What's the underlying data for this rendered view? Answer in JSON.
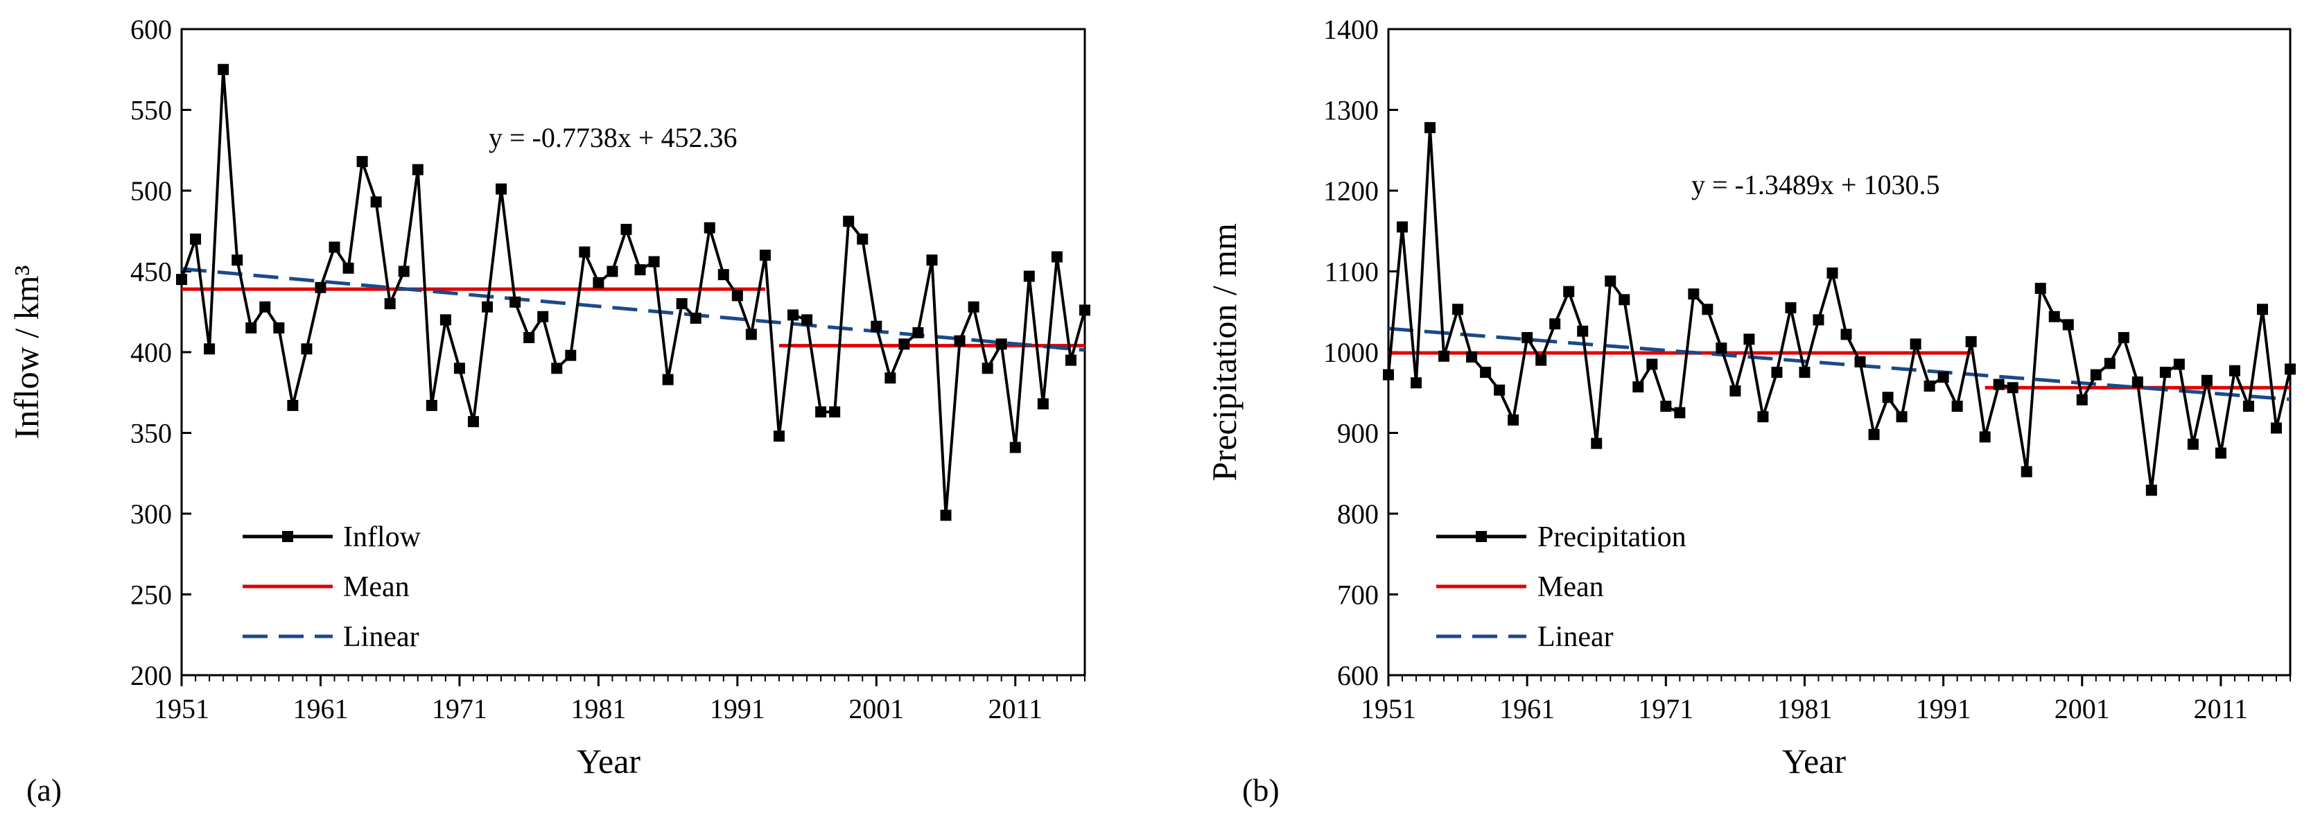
{
  "chart_data": [
    {
      "type": "line",
      "panel_label": "(a)",
      "xlabel": "Year",
      "ylabel": "Inflow / km³",
      "xlim": [
        1951,
        2016
      ],
      "ylim": [
        200,
        600
      ],
      "xticks": [
        1951,
        1961,
        1971,
        1981,
        1991,
        2001,
        2011
      ],
      "yticks": [
        200,
        250,
        300,
        350,
        400,
        450,
        500,
        550,
        600
      ],
      "equation": "y = -0.7738x  + 452.36",
      "x": [
        1951,
        1952,
        1953,
        1954,
        1955,
        1956,
        1957,
        1958,
        1959,
        1960,
        1961,
        1962,
        1963,
        1964,
        1965,
        1966,
        1967,
        1968,
        1969,
        1970,
        1971,
        1972,
        1973,
        1974,
        1975,
        1976,
        1977,
        1978,
        1979,
        1980,
        1981,
        1982,
        1983,
        1984,
        1985,
        1986,
        1987,
        1988,
        1989,
        1990,
        1991,
        1992,
        1993,
        1994,
        1995,
        1996,
        1997,
        1998,
        1999,
        2000,
        2001,
        2002,
        2003,
        2004,
        2005,
        2006,
        2007,
        2008,
        2009,
        2010,
        2011,
        2012,
        2013,
        2014,
        2015,
        2016
      ],
      "series": [
        {
          "name": "Inflow",
          "values": [
            445,
            470,
            402,
            575,
            457,
            415,
            428,
            415,
            367,
            402,
            440,
            465,
            452,
            518,
            493,
            430,
            450,
            513,
            367,
            420,
            390,
            357,
            428,
            501,
            431,
            409,
            422,
            390,
            398,
            462,
            443,
            450,
            476,
            451,
            456,
            383,
            430,
            421,
            477,
            448,
            435,
            411,
            460,
            348,
            423,
            420,
            363,
            363,
            481,
            470,
            416,
            384,
            405,
            412,
            457,
            299,
            407,
            428,
            390,
            405,
            341,
            447,
            368,
            459,
            395,
            426
          ],
          "color": "#000000"
        },
        {
          "name": "Mean",
          "segments": [
            {
              "x": [
                1951,
                1993
              ],
              "y": [
                439,
                439
              ]
            },
            {
              "x": [
                1994,
                2016
              ],
              "y": [
                404,
                404
              ]
            }
          ],
          "color": "#e00000"
        },
        {
          "name": "Linear",
          "slope": -0.7738,
          "intercept": 452.36,
          "x_range": [
            1951,
            2016
          ],
          "color": "#1a4a8a"
        }
      ],
      "legend": [
        "Inflow",
        "Mean",
        "Linear"
      ],
      "legend_position": "bottom-left"
    },
    {
      "type": "line",
      "panel_label": "(b)",
      "xlabel": "Year",
      "ylabel": "Precipitation / mm",
      "xlim": [
        1951,
        2016
      ],
      "ylim": [
        600,
        1400
      ],
      "xticks": [
        1951,
        1961,
        1971,
        1981,
        1991,
        2001,
        2011
      ],
      "yticks": [
        600,
        700,
        800,
        900,
        1000,
        1100,
        1200,
        1300,
        1400
      ],
      "equation": "y = -1.3489x  + 1030.5",
      "x": [
        1951,
        1952,
        1953,
        1954,
        1955,
        1956,
        1957,
        1958,
        1959,
        1960,
        1961,
        1962,
        1963,
        1964,
        1965,
        1966,
        1967,
        1968,
        1969,
        1970,
        1971,
        1972,
        1973,
        1974,
        1975,
        1976,
        1977,
        1978,
        1979,
        1980,
        1981,
        1982,
        1983,
        1984,
        1985,
        1986,
        1987,
        1988,
        1989,
        1990,
        1991,
        1992,
        1993,
        1994,
        1995,
        1996,
        1997,
        1998,
        1999,
        2000,
        2001,
        2002,
        2003,
        2004,
        2005,
        2006,
        2007,
        2008,
        2009,
        2010,
        2011,
        2012,
        2013,
        2014,
        2015,
        2016
      ],
      "series": [
        {
          "name": "Precipitation",
          "values": [
            972,
            1155,
            962,
            1278,
            995,
            1053,
            994,
            975,
            953,
            916,
            1018,
            990,
            1035,
            1075,
            1026,
            887,
            1088,
            1065,
            957,
            985,
            933,
            925,
            1072,
            1053,
            1005,
            952,
            1016,
            920,
            975,
            1055,
            975,
            1040,
            1098,
            1022,
            988,
            898,
            944,
            920,
            1010,
            958,
            969,
            933,
            1013,
            895,
            960,
            956,
            852,
            1079,
            1044,
            1034,
            941,
            972,
            986,
            1018,
            963,
            829,
            975,
            985,
            886,
            965,
            875,
            977,
            933,
            1053,
            906,
            979
          ],
          "color": "#000000"
        },
        {
          "name": "Mean",
          "segments": [
            {
              "x": [
                1951,
                1993
              ],
              "y": [
                999,
                999
              ]
            },
            {
              "x": [
                1994,
                2016
              ],
              "y": [
                956,
                956
              ]
            }
          ],
          "color": "#e00000"
        },
        {
          "name": "Linear",
          "slope": -1.3489,
          "intercept": 1030.5,
          "x_range": [
            1951,
            2016
          ],
          "color": "#1a4a8a"
        }
      ],
      "legend": [
        "Precipitation",
        "Mean",
        "Linear"
      ],
      "legend_position": "bottom-left"
    }
  ]
}
